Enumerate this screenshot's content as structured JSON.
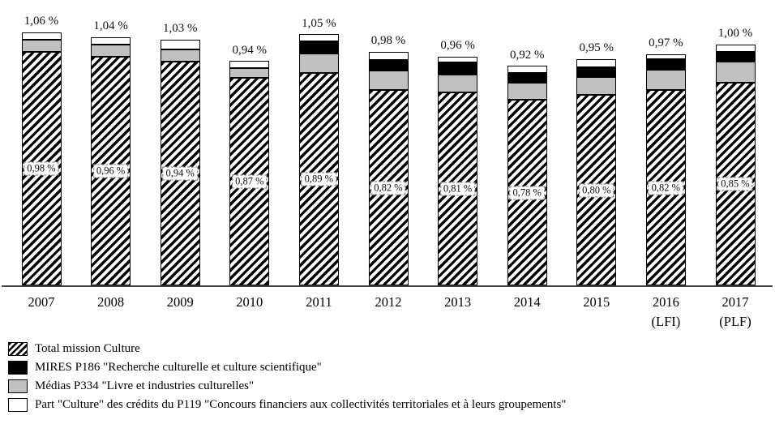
{
  "chart_data": {
    "type": "bar",
    "stacked": true,
    "categories": [
      "2007",
      "2008",
      "2009",
      "2010",
      "2011",
      "2012",
      "2013",
      "2014",
      "2015",
      "2016\n(LFI)",
      "2017\n(PLF)"
    ],
    "series": [
      {
        "name": "Total mission Culture",
        "style": "hatch",
        "values": [
          0.98,
          0.96,
          0.94,
          0.87,
          0.89,
          0.82,
          0.81,
          0.78,
          0.8,
          0.82,
          0.85
        ]
      },
      {
        "name": "Médias P334 \"Livre et industries culturelles\"",
        "style": "gray",
        "color": "#c0c0c0",
        "values": [
          0.05,
          0.05,
          0.05,
          0.04,
          0.08,
          0.08,
          0.075,
          0.07,
          0.075,
          0.085,
          0.09
        ]
      },
      {
        "name": "MIRES P186 \"Recherche culturelle et culture scientifique\"",
        "style": "black",
        "color": "#000000",
        "values": [
          0,
          0,
          0,
          0,
          0.05,
          0.045,
          0.05,
          0.04,
          0.04,
          0.045,
          0.04
        ]
      },
      {
        "name": "Part \"Culture\" des crédits du P119 \"Concours financiers aux collectivités territoriales et à leurs groupements\"",
        "style": "white",
        "color": "#ffffff",
        "values": [
          0.03,
          0.03,
          0.04,
          0.03,
          0.03,
          0.035,
          0.025,
          0.03,
          0.035,
          0.02,
          0.03
        ]
      }
    ],
    "total_labels": [
      "1,06 %",
      "1,04 %",
      "1,03 %",
      "0,94 %",
      "1,05 %",
      "0,98 %",
      "0,96 %",
      "0,92 %",
      "0,95 %",
      "0,97 %",
      "1,00 %"
    ],
    "hatch_labels": [
      "0,98 %",
      "0,96 %",
      "0,94 %",
      "0,87 %",
      "0,89 %",
      "0,82 %",
      "0,81 %",
      "0,78 %",
      "0,80 %",
      "0,82 %",
      "0,85 %"
    ],
    "ylim": [
      0,
      1.12
    ],
    "grid": false,
    "legend_position": "bottom-left"
  },
  "legend": {
    "items": [
      {
        "label": "Total mission Culture",
        "swatch": "hatch"
      },
      {
        "label": "MIRES P186 \"Recherche culturelle et culture scientifique\"",
        "swatch": "black"
      },
      {
        "label": "Médias P334 \"Livre et industries culturelles\"",
        "swatch": "gray"
      },
      {
        "label": "Part \"Culture\" des crédits du P119 \"Concours financiers aux collectivités territoriales et à leurs groupements\"",
        "swatch": "white"
      }
    ]
  },
  "colors": {
    "segment_gray": "#c0c0c0",
    "segment_black": "#000000",
    "segment_white": "#ffffff",
    "axis": "#3f3f3f",
    "text": "#111111"
  }
}
